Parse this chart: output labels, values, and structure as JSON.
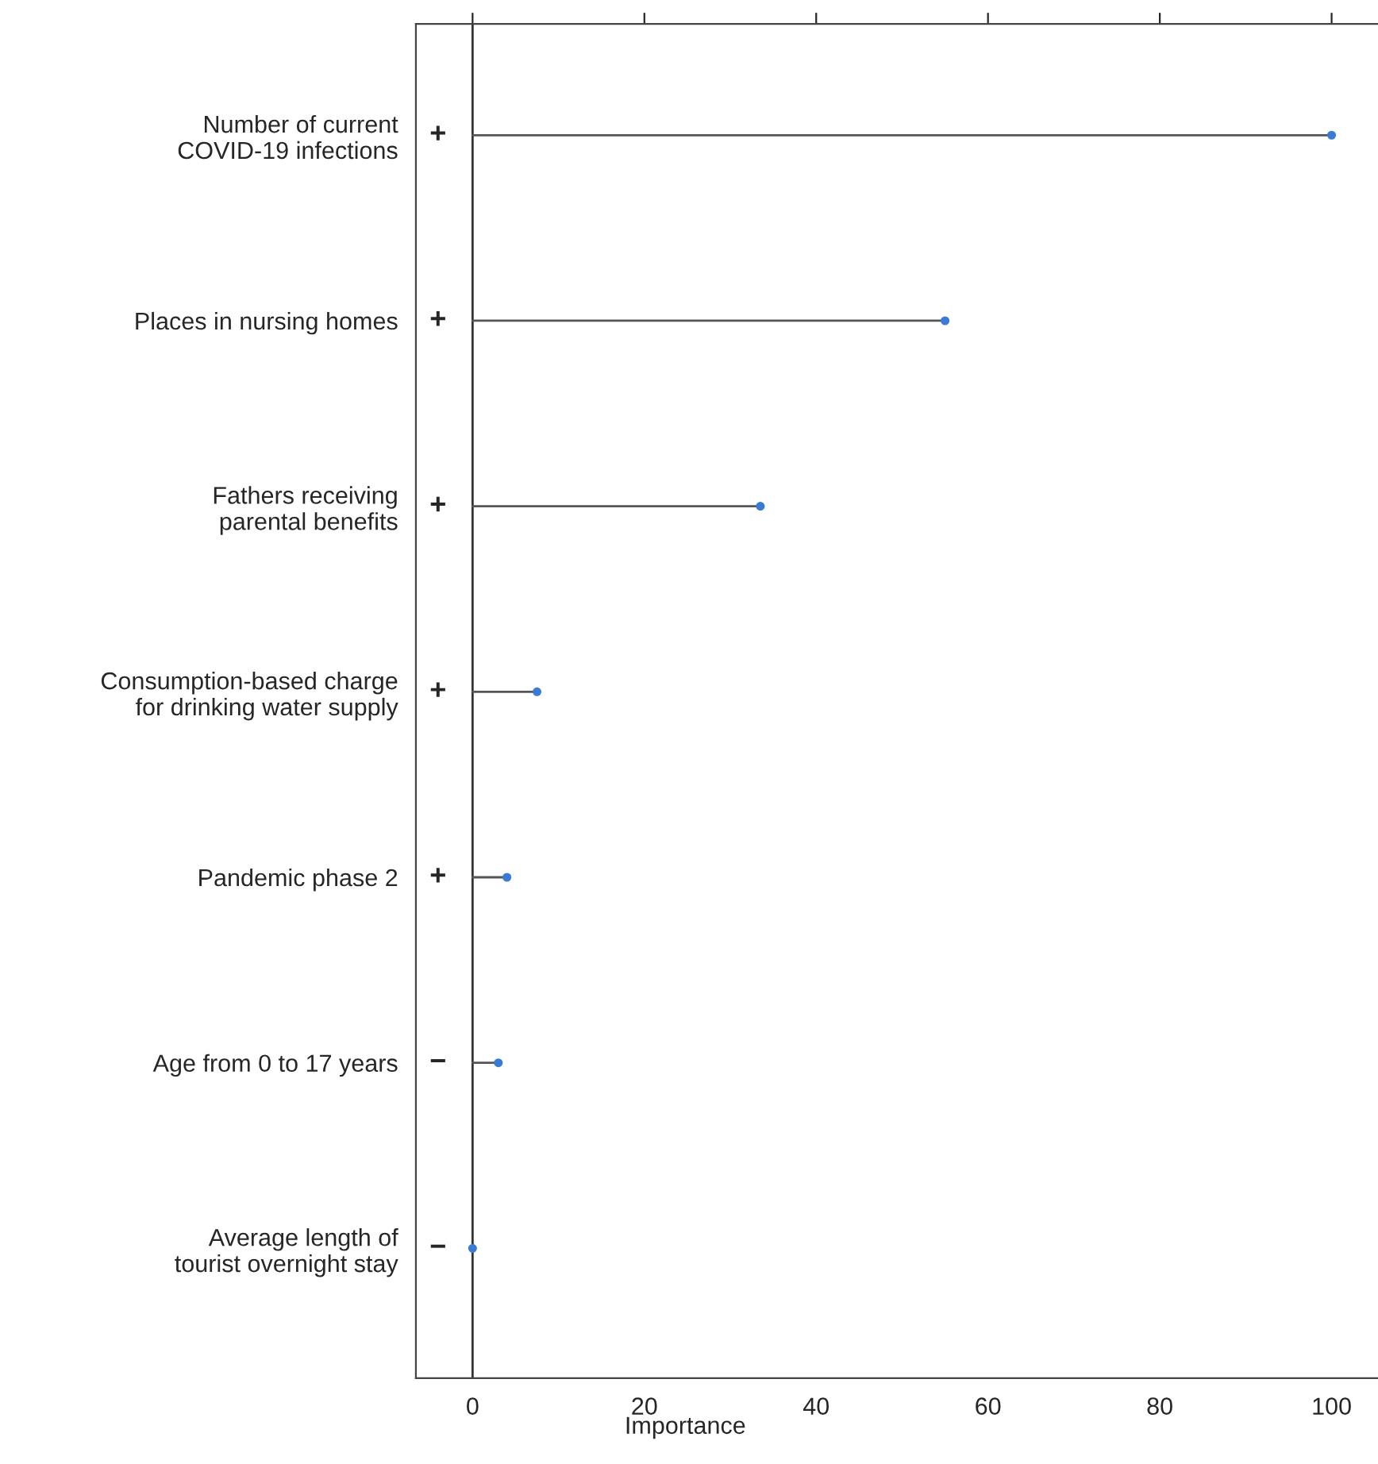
{
  "chart_data": {
    "type": "lollipop",
    "orientation": "horizontal",
    "xlabel": "Importance",
    "categories": [
      "Number of current\nCOVID-19 infections",
      "Places in nursing homes",
      "Fathers receiving\nparental benefits",
      "Consumption-based charge\nfor drinking water supply",
      "Pandemic phase 2",
      "Age from 0 to 17 years",
      "Average length of\ntourist overnight stay"
    ],
    "series": [
      {
        "color": "#3a7bd5",
        "values": [
          100,
          55,
          33.5,
          7.5,
          4,
          3,
          0
        ]
      }
    ],
    "xlim": [
      -6.6,
      105.4
    ],
    "xticks": [
      0,
      20,
      40,
      60,
      80,
      100
    ],
    "ref_lines": [
      {
        "axis": "x",
        "value": 0,
        "color": "#333333"
      }
    ],
    "marker": "circle",
    "grid": false,
    "legend": false,
    "annotations": [
      "+",
      "+",
      "+",
      "+",
      "+",
      "−",
      "−"
    ]
  }
}
